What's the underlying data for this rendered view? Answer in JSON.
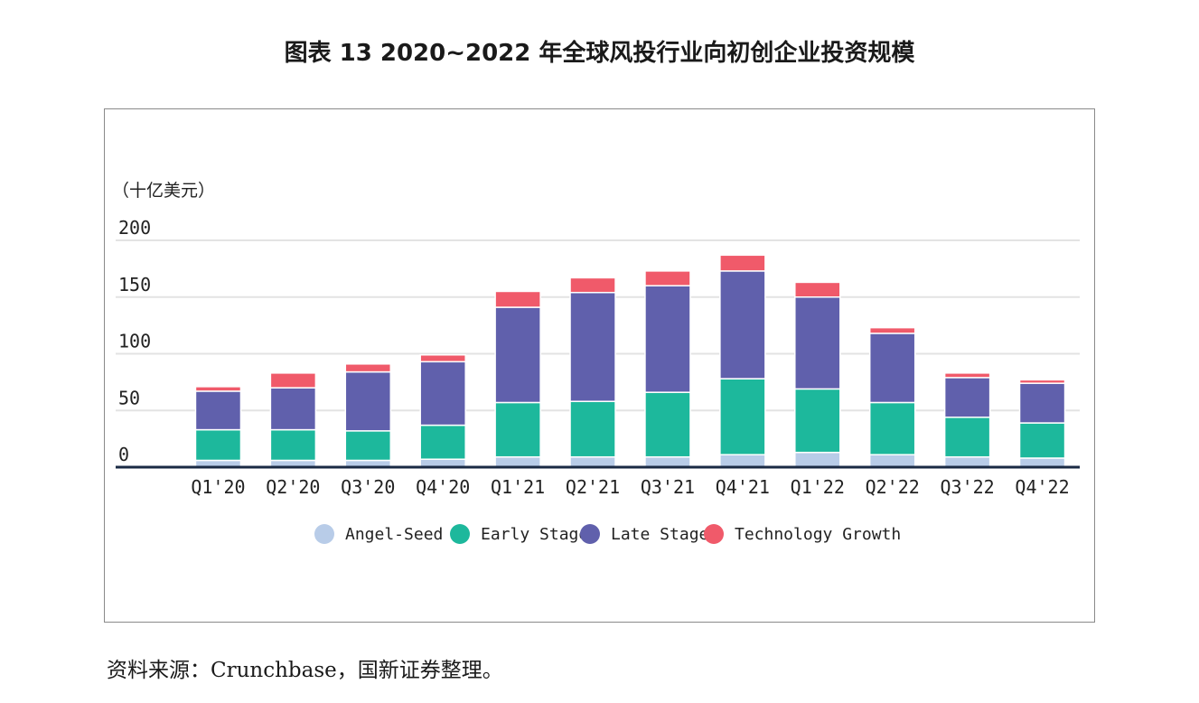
{
  "title": "图表 13  2020~2022 年全球风投行业向初创企业投资规模",
  "source": "资料来源：Crunchbase，国新证券整理。",
  "chart_data": {
    "type": "bar",
    "stacked": true,
    "unit_label": "（十亿美元）",
    "categories": [
      "Q1'20",
      "Q2'20",
      "Q3'20",
      "Q4'20",
      "Q1'21",
      "Q2'21",
      "Q3'21",
      "Q4'21",
      "Q1'22",
      "Q2'22",
      "Q3'22",
      "Q4'22"
    ],
    "series": [
      {
        "name": "Angel-Seed",
        "color": "#b8cce8",
        "values": [
          6,
          6,
          6,
          7,
          9,
          9,
          9,
          11,
          13,
          11,
          9,
          8
        ]
      },
      {
        "name": "Early Stage",
        "color": "#1db89c",
        "values": [
          27,
          27,
          26,
          30,
          48,
          49,
          57,
          67,
          56,
          46,
          35,
          31
        ]
      },
      {
        "name": "Late Stage",
        "color": "#6060ac",
        "values": [
          34,
          37,
          52,
          56,
          84,
          96,
          94,
          95,
          81,
          61,
          35,
          35
        ]
      },
      {
        "name": "Technology Growth",
        "color": "#f05a6a",
        "values": [
          4,
          13,
          7,
          6,
          14,
          13,
          13,
          14,
          13,
          5,
          4,
          3
        ]
      }
    ],
    "ylim": [
      0,
      200
    ],
    "yticks": [
      0,
      50,
      100,
      150,
      200
    ],
    "grid": true,
    "legend_position": "bottom"
  }
}
